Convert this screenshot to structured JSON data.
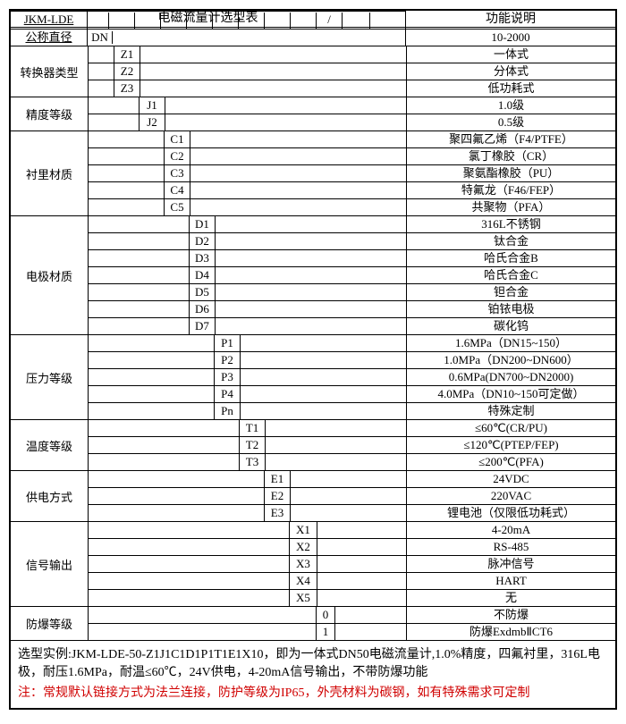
{
  "title_left": "电磁流量计选型表",
  "title_right": "功能说明",
  "model_prefix": "JKM-LDE",
  "slash": "/",
  "dn_group": {
    "label": "公称直径",
    "code": "DN",
    "desc": "10-2000"
  },
  "groups": [
    {
      "label": "转换器类型",
      "indent": 1,
      "rows": [
        {
          "code": "Z1",
          "desc": "一体式"
        },
        {
          "code": "Z2",
          "desc": "分体式"
        },
        {
          "code": "Z3",
          "desc": "低功耗式"
        }
      ]
    },
    {
      "label": "精度等级",
      "indent": 2,
      "rows": [
        {
          "code": "J1",
          "desc": "1.0级"
        },
        {
          "code": "J2",
          "desc": "0.5级"
        }
      ]
    },
    {
      "label": "衬里材质",
      "indent": 3,
      "rows": [
        {
          "code": "C1",
          "desc": "聚四氟乙烯（F4/PTFE）"
        },
        {
          "code": "C2",
          "desc": "氯丁橡胶（CR）"
        },
        {
          "code": "C3",
          "desc": "聚氨酯橡胶（PU）"
        },
        {
          "code": "C4",
          "desc": "特氟龙（F46/FEP）"
        },
        {
          "code": "C5",
          "desc": "共聚物（PFA）"
        }
      ]
    },
    {
      "label": "电极材质",
      "indent": 4,
      "rows": [
        {
          "code": "D1",
          "desc": "316L不锈钢"
        },
        {
          "code": "D2",
          "desc": "钛合金"
        },
        {
          "code": "D3",
          "desc": "哈氏合金B"
        },
        {
          "code": "D4",
          "desc": "哈氏合金C"
        },
        {
          "code": "D5",
          "desc": "钽合金"
        },
        {
          "code": "D6",
          "desc": "铂铱电极"
        },
        {
          "code": "D7",
          "desc": "碳化钨"
        }
      ]
    },
    {
      "label": "压力等级",
      "indent": 5,
      "rows": [
        {
          "code": "P1",
          "desc": "1.6MPa（DN15~150）"
        },
        {
          "code": "P2",
          "desc": "1.0MPa（DN200~DN600）"
        },
        {
          "code": "P3",
          "desc": "0.6MPa(DN700~DN2000)"
        },
        {
          "code": "P4",
          "desc": "4.0MPa（DN10~150可定做）"
        },
        {
          "code": "Pn",
          "desc": "特殊定制"
        }
      ]
    },
    {
      "label": "温度等级",
      "indent": 6,
      "rows": [
        {
          "code": "T1",
          "desc": "≤60℃(CR/PU)"
        },
        {
          "code": "T2",
          "desc": "≤120℃(PTEP/FEP)"
        },
        {
          "code": "T3",
          "desc": "≤200℃(PFA)"
        }
      ]
    },
    {
      "label": "供电方式",
      "indent": 7,
      "rows": [
        {
          "code": "E1",
          "desc": "24VDC"
        },
        {
          "code": "E2",
          "desc": "220VAC"
        },
        {
          "code": "E3",
          "desc": "锂电池（仅限低功耗式）"
        }
      ]
    },
    {
      "label": "信号输出",
      "indent": 8,
      "rows": [
        {
          "code": "X1",
          "desc": "4-20mA"
        },
        {
          "code": "X2",
          "desc": "RS-485"
        },
        {
          "code": "X3",
          "desc": "脉冲信号"
        },
        {
          "code": "X4",
          "desc": "HART"
        },
        {
          "code": "X5",
          "desc": "无"
        }
      ]
    },
    {
      "label": "防爆等级",
      "indent": 9,
      "rows": [
        {
          "code": "0",
          "desc": "不防爆"
        },
        {
          "code": "1",
          "desc": "防爆ExdmbⅡCT6"
        }
      ]
    }
  ],
  "footer_example": "选型实例:JKM-LDE-50-Z1J1C1D1P1T1E1X10，即为一体式DN50电磁流量计,1.0%精度，四氟衬里，316L电极，耐压1.6MPa，耐温≤60℃，24V供电，4-20mA信号输出，不带防爆功能",
  "footer_note": "注：常规默认链接方式为法兰连接，防护等级为IP65，外壳材料为碳钢，如有特殊需求可定制",
  "layout": {
    "indent_widths": [
      28,
      28,
      28,
      28,
      28,
      28,
      28,
      28,
      30,
      20
    ],
    "border_color": "#000000",
    "font": "SimSun",
    "font_size": 13,
    "note_color": "#d00000"
  }
}
